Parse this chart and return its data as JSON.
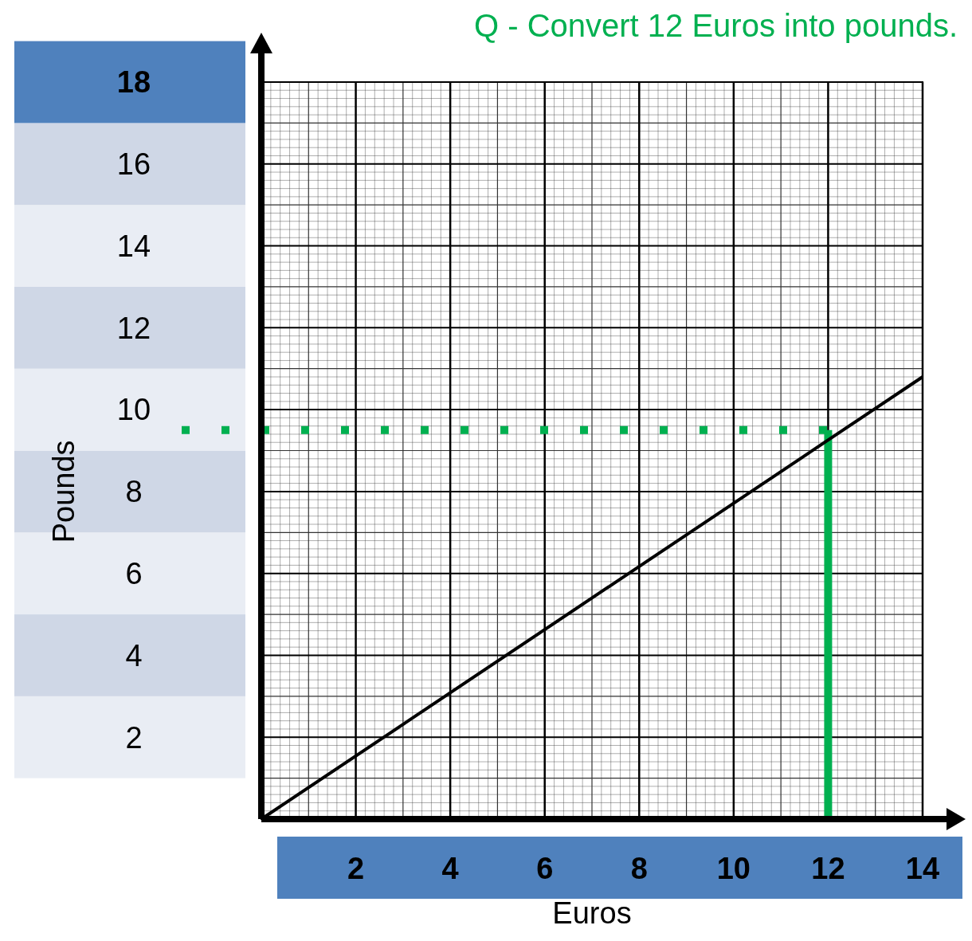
{
  "chart_data": {
    "type": "line",
    "title": "Q - Convert 12 Euros into pounds.",
    "xlabel": "Euros",
    "ylabel": "Pounds",
    "x": [
      0,
      14
    ],
    "series": [
      {
        "color": "#000000",
        "values": [
          0,
          10.8
        ]
      }
    ],
    "xlim": [
      0,
      14
    ],
    "ylim": [
      0,
      18
    ],
    "xticks": [
      2,
      4,
      6,
      8,
      10,
      12,
      14
    ],
    "yticks": [
      2,
      4,
      6,
      8,
      10,
      12,
      14,
      16,
      18
    ],
    "grid": true,
    "line_style": "solid",
    "ref_lines": [
      {
        "axis": "x",
        "value": 12,
        "color": "#00b050",
        "line_style": "solid"
      },
      {
        "axis": "y",
        "value": 9.5,
        "color": "#00b050",
        "line_style": "dotted"
      }
    ]
  }
}
